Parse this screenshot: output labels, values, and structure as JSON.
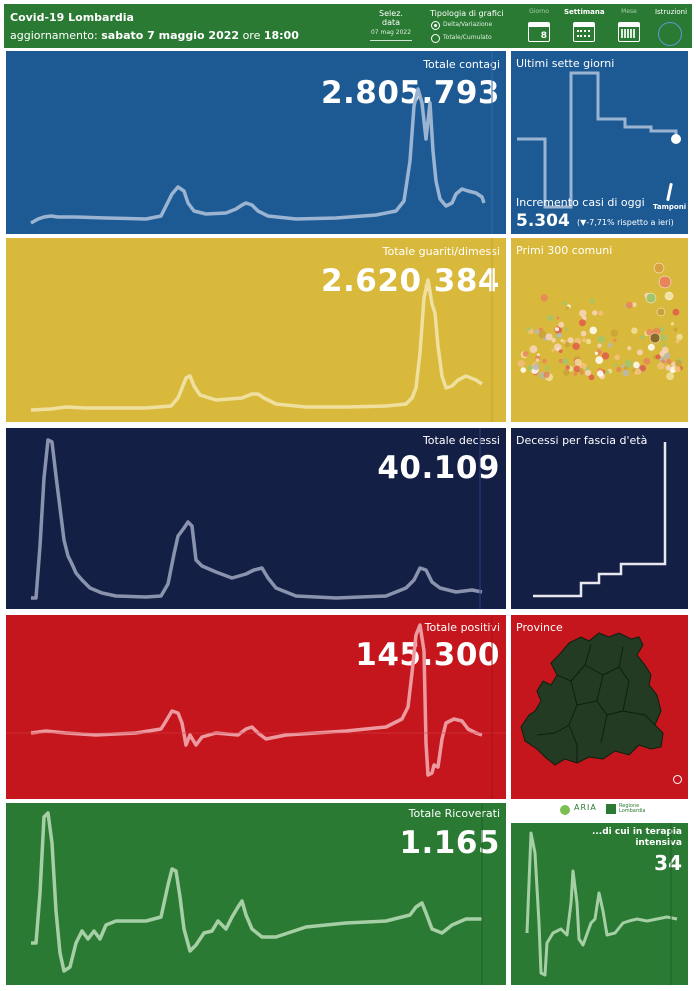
{
  "header": {
    "title": "Covid-19 Lombardia",
    "update_label": "aggiornamento:",
    "update_date": "sabato 7 maggio 2022",
    "update_ore": "ore",
    "update_time": "18:00",
    "date_selector": {
      "label": "Selez. data",
      "value": "07 mag 2022"
    },
    "chart_type": {
      "label": "Tipologia di grafici",
      "options": [
        "Delta/Variazione",
        "Totale/Cumulato"
      ],
      "selected": "Delta/Variazione"
    },
    "period_buttons": [
      {
        "label": "Giorno",
        "icon": "calendar-day-icon",
        "value": "8"
      },
      {
        "label": "Settimana",
        "icon": "calendar-week-icon"
      },
      {
        "label": "Mese",
        "icon": "calendar-month-icon"
      }
    ],
    "instructions_label": "Istruzioni"
  },
  "panels": {
    "contagi": {
      "title": "Totale contagi",
      "value": "2.805.793",
      "color": "#1d5a94"
    },
    "guariti": {
      "title": "Totale guariti/dimessi",
      "value": "2.620.384",
      "color": "#d9b93b"
    },
    "decessi": {
      "title": "Totale decessi",
      "value": "40.109",
      "color": "#141f45"
    },
    "positivi": {
      "title": "Totale positivi",
      "value": "145.300",
      "color": "#c4161c"
    },
    "ricoverati": {
      "title": "Totale Ricoverati",
      "value": "1.165",
      "color": "#2a7a33"
    }
  },
  "side": {
    "ultimi": {
      "title": "Ultimi sette giorni",
      "increment_label": "Incremento casi di oggi",
      "increment_value": "5.304",
      "change_text": "(▼-7,71% rispetto a  ieri)",
      "tamponi_label": "Tamponi"
    },
    "comuni": {
      "title": "Primi 300 comuni"
    },
    "fascia": {
      "title": "Decessi per fascia d'età"
    },
    "province": {
      "title": "Province"
    },
    "logos": {
      "aria": "ARIA",
      "regione": "Regione Lombardia"
    },
    "terapia": {
      "title_line1": "...di cui in terapia",
      "title_line2": "intensiva",
      "value": "34"
    }
  }
}
